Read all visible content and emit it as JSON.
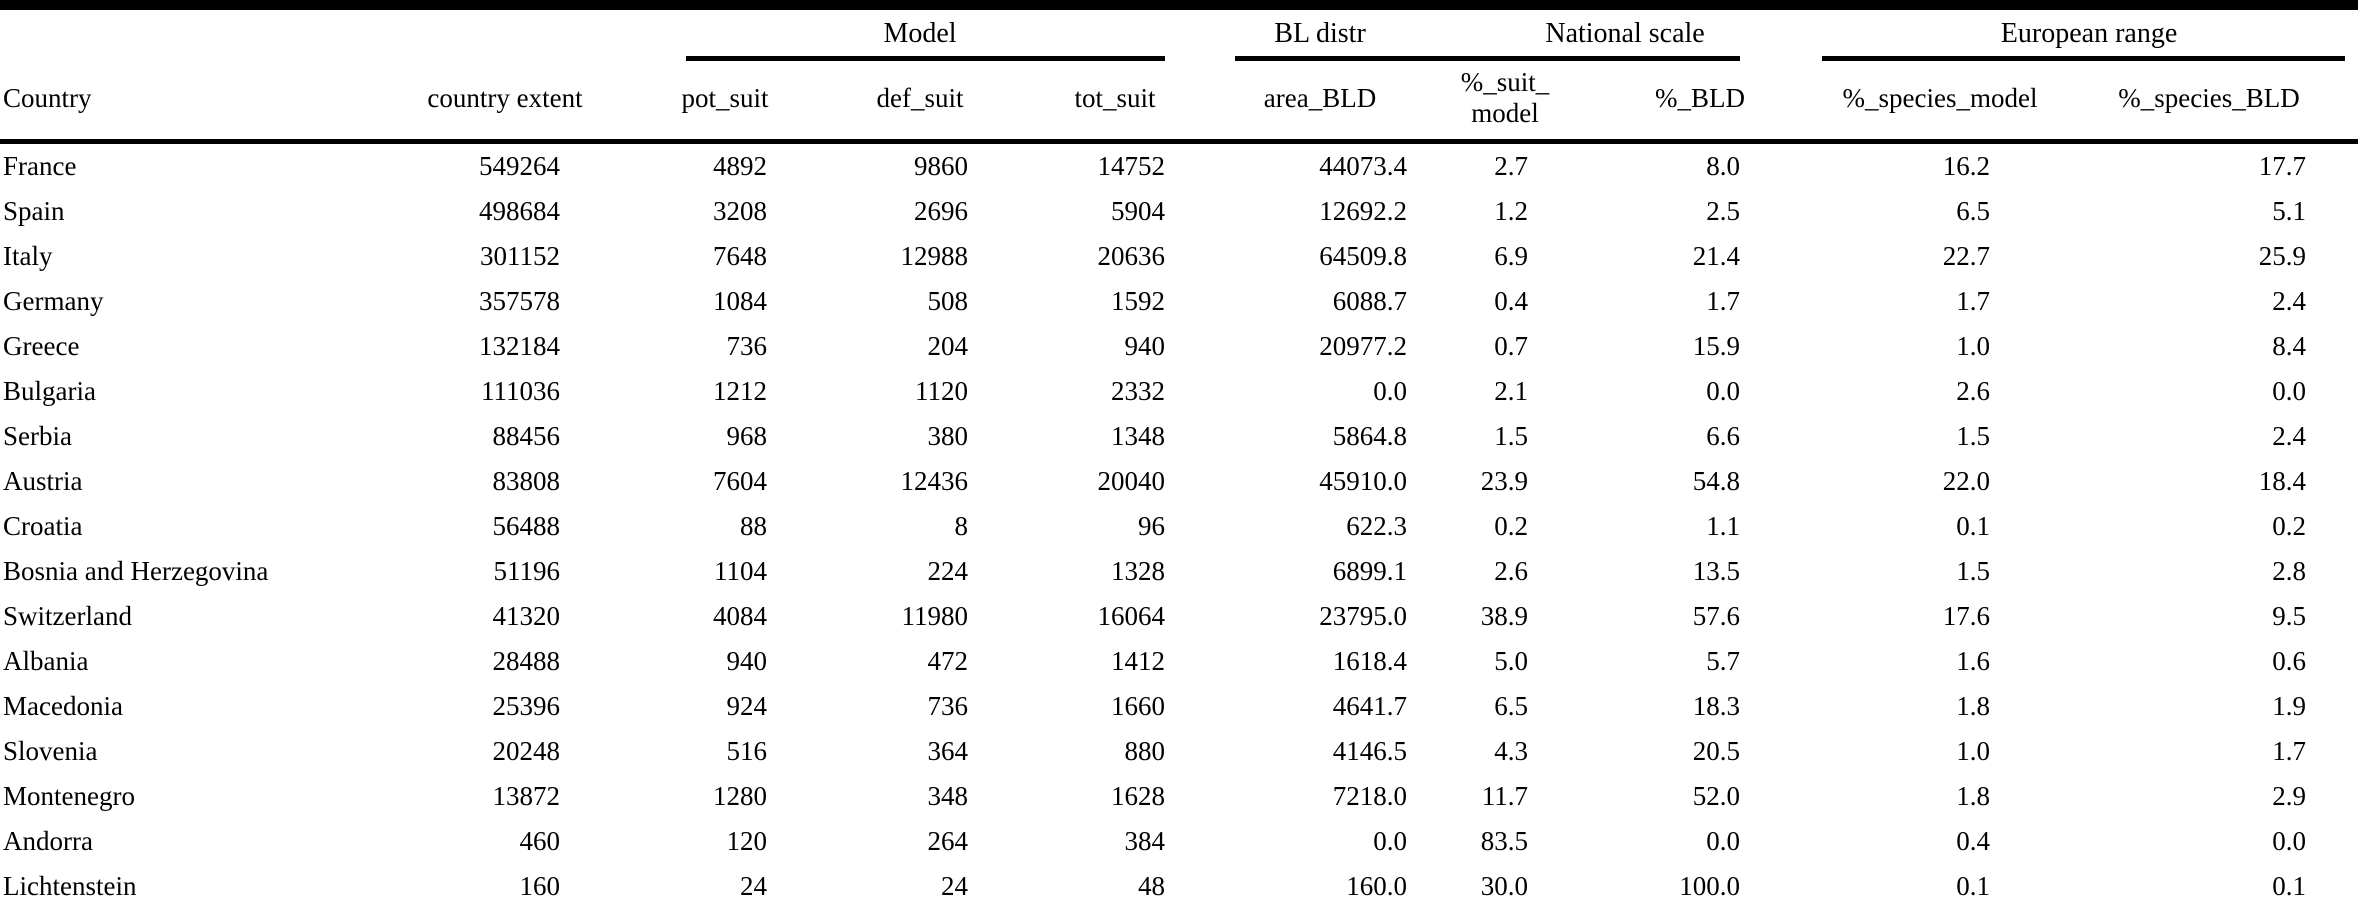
{
  "table": {
    "column_groups": [
      {
        "label": "Model"
      },
      {
        "label": "BL distr"
      },
      {
        "label": "National scale"
      },
      {
        "label": "European range"
      }
    ],
    "columns": [
      {
        "label": "Country"
      },
      {
        "label": "country extent"
      },
      {
        "label": "pot_suit"
      },
      {
        "label": "def_suit"
      },
      {
        "label": "tot_suit"
      },
      {
        "label": "area_BLD"
      },
      {
        "label": "%_suit_",
        "label2": "model"
      },
      {
        "label": "%_BLD"
      },
      {
        "label": "%_species_model"
      },
      {
        "label": "%_species_BLD"
      }
    ],
    "rows": [
      [
        "France",
        "549264",
        "4892",
        "9860",
        "14752",
        "44073.4",
        "2.7",
        "8.0",
        "16.2",
        "17.7"
      ],
      [
        "Spain",
        "498684",
        "3208",
        "2696",
        "5904",
        "12692.2",
        "1.2",
        "2.5",
        "6.5",
        "5.1"
      ],
      [
        "Italy",
        "301152",
        "7648",
        "12988",
        "20636",
        "64509.8",
        "6.9",
        "21.4",
        "22.7",
        "25.9"
      ],
      [
        "Germany",
        "357578",
        "1084",
        "508",
        "1592",
        "6088.7",
        "0.4",
        "1.7",
        "1.7",
        "2.4"
      ],
      [
        "Greece",
        "132184",
        "736",
        "204",
        "940",
        "20977.2",
        "0.7",
        "15.9",
        "1.0",
        "8.4"
      ],
      [
        "Bulgaria",
        "111036",
        "1212",
        "1120",
        "2332",
        "0.0",
        "2.1",
        "0.0",
        "2.6",
        "0.0"
      ],
      [
        "Serbia",
        "88456",
        "968",
        "380",
        "1348",
        "5864.8",
        "1.5",
        "6.6",
        "1.5",
        "2.4"
      ],
      [
        "Austria",
        "83808",
        "7604",
        "12436",
        "20040",
        "45910.0",
        "23.9",
        "54.8",
        "22.0",
        "18.4"
      ],
      [
        "Croatia",
        "56488",
        "88",
        "8",
        "96",
        "622.3",
        "0.2",
        "1.1",
        "0.1",
        "0.2"
      ],
      [
        "Bosnia and Herzegovina",
        "51196",
        "1104",
        "224",
        "1328",
        "6899.1",
        "2.6",
        "13.5",
        "1.5",
        "2.8"
      ],
      [
        "Switzerland",
        "41320",
        "4084",
        "11980",
        "16064",
        "23795.0",
        "38.9",
        "57.6",
        "17.6",
        "9.5"
      ],
      [
        "Albania",
        "28488",
        "940",
        "472",
        "1412",
        "1618.4",
        "5.0",
        "5.7",
        "1.6",
        "0.6"
      ],
      [
        "Macedonia",
        "25396",
        "924",
        "736",
        "1660",
        "4641.7",
        "6.5",
        "18.3",
        "1.8",
        "1.9"
      ],
      [
        "Slovenia",
        "20248",
        "516",
        "364",
        "880",
        "4146.5",
        "4.3",
        "20.5",
        "1.0",
        "1.7"
      ],
      [
        "Montenegro",
        "13872",
        "1280",
        "348",
        "1628",
        "7218.0",
        "11.7",
        "52.0",
        "1.8",
        "2.9"
      ],
      [
        "Andorra",
        "460",
        "120",
        "264",
        "384",
        "0.0",
        "83.5",
        "0.0",
        "0.4",
        "0.0"
      ],
      [
        "Lichtenstein",
        "160",
        "24",
        "24",
        "48",
        "160.0",
        "30.0",
        "100.0",
        "0.1",
        "0.1"
      ]
    ]
  }
}
